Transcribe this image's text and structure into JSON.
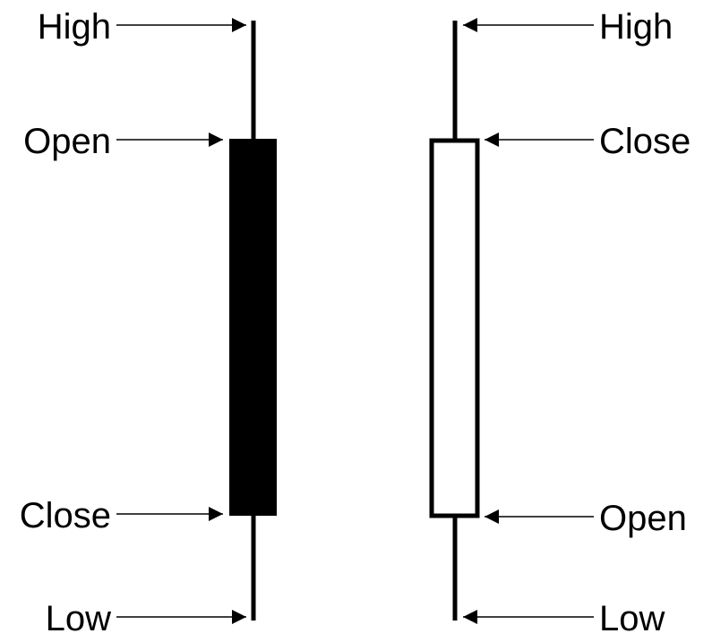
{
  "candles": [
    {
      "fill": "#000000",
      "labels": {
        "high": "High",
        "open": "Open",
        "close": "Close",
        "low": "Low"
      }
    },
    {
      "fill": "#ffffff",
      "labels": {
        "high": "High",
        "close": "Close",
        "open": "Open",
        "low": "Low"
      }
    }
  ],
  "colors": {
    "line": "#000000",
    "background": "#ffffff"
  }
}
